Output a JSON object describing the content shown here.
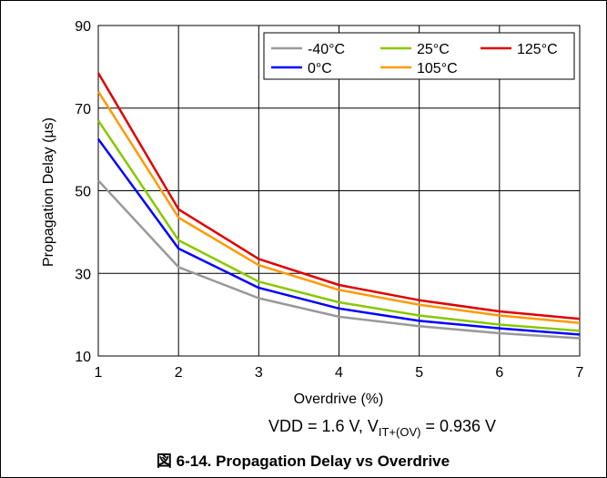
{
  "chart_data": {
    "type": "line",
    "xlabel": "Overdrive (%)",
    "ylabel": "Propagation Delay (µs)",
    "xlim": [
      1,
      7
    ],
    "ylim": [
      10,
      90
    ],
    "xticks": [
      1,
      2,
      3,
      4,
      5,
      6,
      7
    ],
    "yticks": [
      10,
      30,
      50,
      70,
      90
    ],
    "grid": true,
    "legend_position": "top-right",
    "x": [
      1,
      2,
      3,
      4,
      5,
      6,
      7
    ],
    "series": [
      {
        "name": "-40°C",
        "color": "#999999",
        "values": [
          52.5,
          31.5,
          24.0,
          19.5,
          17.2,
          15.5,
          14.3
        ]
      },
      {
        "name": "0°C",
        "color": "#0000ff",
        "values": [
          62.5,
          36.0,
          26.5,
          21.5,
          18.5,
          16.7,
          15.2
        ]
      },
      {
        "name": "25°C",
        "color": "#88c800",
        "values": [
          67.0,
          38.0,
          28.0,
          23.0,
          19.8,
          17.6,
          16.1
        ]
      },
      {
        "name": "105°C",
        "color": "#ff9900",
        "values": [
          74.0,
          43.5,
          32.0,
          26.0,
          22.4,
          19.8,
          18.0
        ]
      },
      {
        "name": "125°C",
        "color": "#e00000",
        "values": [
          78.5,
          45.5,
          33.5,
          27.2,
          23.5,
          20.8,
          19.0
        ]
      }
    ],
    "legend_order": [
      "-40°C",
      "25°C",
      "125°C",
      "0°C",
      "105°C"
    ],
    "condition": {
      "prefix": "VDD = 1.6 V, V",
      "sub": "IT+(OV)",
      "suffix": " = 0.936 V"
    },
    "caption": "図 6-14. Propagation Delay vs Overdrive"
  }
}
